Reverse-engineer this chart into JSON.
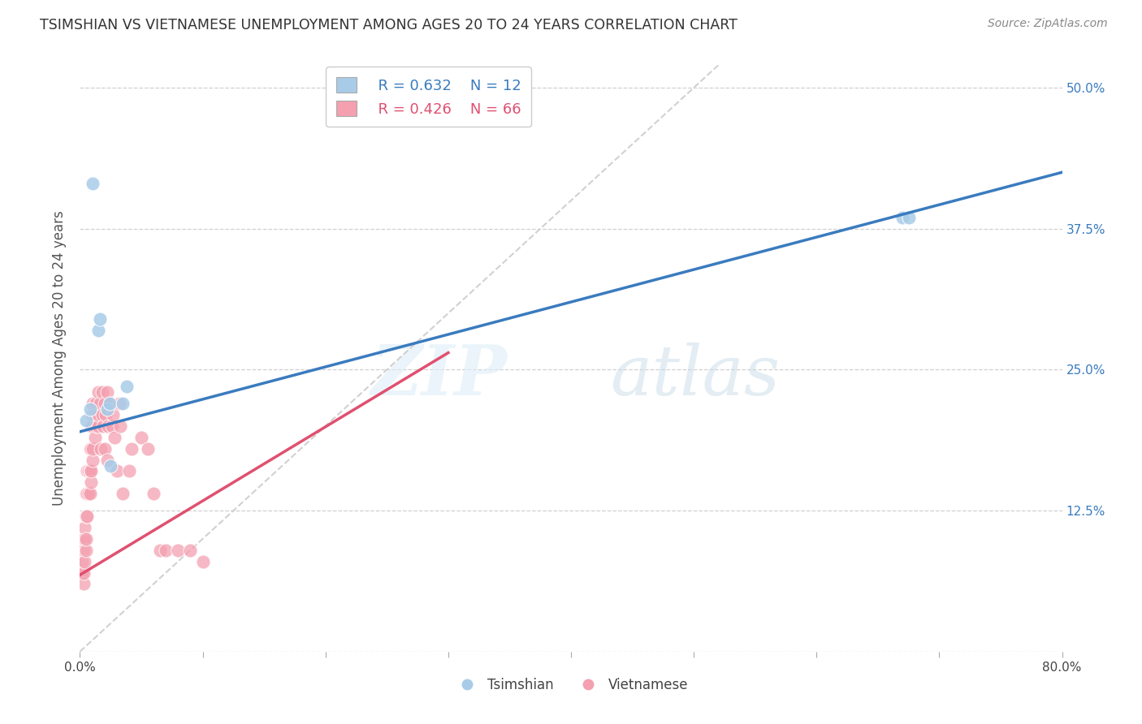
{
  "title": "TSIMSHIAN VS VIETNAMESE UNEMPLOYMENT AMONG AGES 20 TO 24 YEARS CORRELATION CHART",
  "source": "Source: ZipAtlas.com",
  "ylabel": "Unemployment Among Ages 20 to 24 years",
  "xlim": [
    0.0,
    0.8
  ],
  "ylim": [
    0.0,
    0.52
  ],
  "xticks": [
    0.0,
    0.1,
    0.2,
    0.3,
    0.4,
    0.5,
    0.6,
    0.7,
    0.8
  ],
  "xticklabels": [
    "0.0%",
    "",
    "",
    "",
    "",
    "",
    "",
    "",
    "80.0%"
  ],
  "yticks": [
    0.0,
    0.125,
    0.25,
    0.375,
    0.5
  ],
  "yticklabels": [
    "",
    "12.5%",
    "25.0%",
    "37.5%",
    "50.0%"
  ],
  "legend_blue_r": "R = 0.632",
  "legend_blue_n": "N = 12",
  "legend_pink_r": "R = 0.426",
  "legend_pink_n": "N = 66",
  "watermark_zip": "ZIP",
  "watermark_atlas": "atlas",
  "blue_color": "#a8cce8",
  "pink_color": "#f4a0b0",
  "blue_line_color": "#3a7bbf",
  "pink_line_color": "#e05070",
  "diagonal_color": "#cccccc",
  "tsimshian_x": [
    0.005,
    0.008,
    0.015,
    0.016,
    0.022,
    0.024,
    0.025,
    0.035,
    0.038,
    0.01,
    0.67,
    0.675
  ],
  "tsimshian_y": [
    0.205,
    0.215,
    0.285,
    0.295,
    0.215,
    0.22,
    0.165,
    0.22,
    0.235,
    0.415,
    0.385,
    0.385
  ],
  "vietnamese_x": [
    0.002,
    0.002,
    0.003,
    0.003,
    0.003,
    0.003,
    0.004,
    0.004,
    0.004,
    0.005,
    0.005,
    0.005,
    0.005,
    0.006,
    0.006,
    0.006,
    0.007,
    0.007,
    0.008,
    0.008,
    0.008,
    0.009,
    0.009,
    0.009,
    0.009,
    0.01,
    0.01,
    0.01,
    0.01,
    0.01,
    0.012,
    0.012,
    0.013,
    0.013,
    0.015,
    0.015,
    0.015,
    0.016,
    0.017,
    0.018,
    0.018,
    0.019,
    0.02,
    0.02,
    0.021,
    0.022,
    0.022,
    0.023,
    0.025,
    0.026,
    0.027,
    0.028,
    0.03,
    0.032,
    0.033,
    0.035,
    0.04,
    0.042,
    0.05,
    0.055,
    0.06,
    0.065,
    0.07,
    0.08,
    0.09,
    0.1
  ],
  "vietnamese_y": [
    0.07,
    0.08,
    0.06,
    0.07,
    0.09,
    0.1,
    0.08,
    0.1,
    0.11,
    0.09,
    0.1,
    0.12,
    0.14,
    0.12,
    0.14,
    0.16,
    0.14,
    0.16,
    0.14,
    0.16,
    0.18,
    0.15,
    0.16,
    0.18,
    0.2,
    0.17,
    0.18,
    0.2,
    0.21,
    0.22,
    0.19,
    0.21,
    0.2,
    0.22,
    0.2,
    0.21,
    0.23,
    0.22,
    0.18,
    0.21,
    0.23,
    0.2,
    0.18,
    0.22,
    0.21,
    0.23,
    0.17,
    0.2,
    0.22,
    0.2,
    0.21,
    0.19,
    0.16,
    0.22,
    0.2,
    0.14,
    0.16,
    0.18,
    0.19,
    0.18,
    0.14,
    0.09,
    0.09,
    0.09,
    0.09,
    0.08
  ],
  "blue_line_x0": 0.0,
  "blue_line_y0": 0.195,
  "blue_line_x1": 0.8,
  "blue_line_y1": 0.425,
  "pink_line_x0": 0.0,
  "pink_line_y0": 0.068,
  "pink_line_x1": 0.3,
  "pink_line_y1": 0.265
}
